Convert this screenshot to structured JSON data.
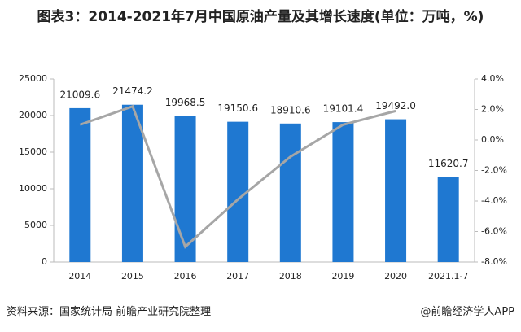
{
  "chart_data": {
    "type": "bar-line",
    "title": "图表3：2014-2021年7月中国原油产量及其增长速度(单位：万吨，%)",
    "categories": [
      "2014",
      "2015",
      "2016",
      "2017",
      "2018",
      "2019",
      "2020",
      "2021.1-7"
    ],
    "series": [
      {
        "type": "bar",
        "color": "#1f78d1",
        "values": [
          21009.6,
          21474.2,
          19968.5,
          19150.6,
          18910.6,
          19101.4,
          19492.0,
          11620.7
        ],
        "value_labels": [
          "21009.6",
          "21474.2",
          "19968.5",
          "19150.6",
          "18910.6",
          "19101.4",
          "19492.0",
          "11620.7"
        ]
      },
      {
        "type": "line",
        "axis": "y2",
        "color": "#a6a6a6",
        "values": [
          1.0,
          2.2,
          -7.0,
          -3.9,
          -1.1,
          1.0,
          1.9,
          null
        ]
      }
    ],
    "ylim": [
      0,
      25000
    ],
    "yticks": [
      0,
      5000,
      10000,
      15000,
      20000,
      25000
    ],
    "y2lim": [
      -8,
      4
    ],
    "y2ticks": [
      {
        "value": -8,
        "label": "-8.0%"
      },
      {
        "value": -6,
        "label": "-6.0%"
      },
      {
        "value": -4,
        "label": "-4.0%"
      },
      {
        "value": -2,
        "label": "-2.0%"
      },
      {
        "value": 0,
        "label": "0.0%"
      },
      {
        "value": 2,
        "label": "2.0%"
      },
      {
        "value": 4,
        "label": "4.0%"
      }
    ],
    "source": "资料来源：国家统计局 前瞻产业研究院整理",
    "credit": "@前瞻经济学人APP"
  }
}
